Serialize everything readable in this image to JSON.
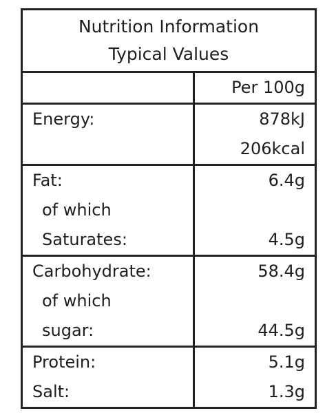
{
  "header": {
    "title": "Nutrition Information",
    "subtitle": "Typical Values"
  },
  "table": {
    "column_header": "Per 100g",
    "sections": [
      [
        {
          "label": "Energy:",
          "value": "878kJ"
        },
        {
          "value": "206kcal"
        }
      ],
      [
        {
          "label": "Fat:",
          "value": "6.4g"
        },
        {
          "label": "of which"
        },
        {
          "label": "Saturates:",
          "value": "4.5g"
        }
      ],
      [
        {
          "label": "Carbohydrate:",
          "value": "58.4g"
        },
        {
          "label": "of which"
        },
        {
          "label": "sugar:",
          "value": "44.5g"
        }
      ],
      [
        {
          "label": "Protein:",
          "value": "5.1g"
        },
        {
          "label": "Salt:",
          "value": "1.3g"
        }
      ]
    ]
  }
}
